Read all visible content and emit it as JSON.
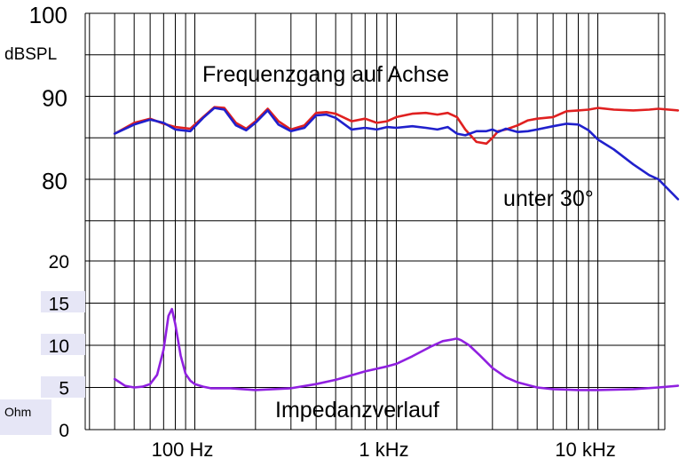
{
  "chart_data": {
    "type": "line",
    "title": "Frequenzgang auf Achse",
    "x_scale": "log",
    "xlim": [
      40,
      25000
    ],
    "x_tick_labels": [
      "100 Hz",
      "1 kHz",
      "10 kHz"
    ],
    "spl": {
      "unit": "dBSPL",
      "ylim": [
        70,
        100
      ],
      "tick_labels": [
        "100",
        "90",
        "80"
      ],
      "series": [
        {
          "name": "Frequenzgang auf Achse",
          "color": "#e02020",
          "x": [
            40,
            50,
            60,
            70,
            80,
            95,
            110,
            125,
            140,
            160,
            180,
            200,
            230,
            260,
            300,
            350,
            400,
            450,
            500,
            600,
            700,
            800,
            900,
            1000,
            1200,
            1400,
            1600,
            1800,
            2000,
            2200,
            2500,
            2800,
            3000,
            3200,
            3500,
            4000,
            4500,
            5000,
            6000,
            7000,
            8000,
            9000,
            10000,
            12000,
            15000,
            18000,
            20000,
            25000
          ],
          "values": [
            85.5,
            86.8,
            87.3,
            86.7,
            86.3,
            86.1,
            87.5,
            88.7,
            88.6,
            86.8,
            86.1,
            87.0,
            88.5,
            87.0,
            86.0,
            86.5,
            88.0,
            88.1,
            87.9,
            87.0,
            87.3,
            86.8,
            87.0,
            87.5,
            87.9,
            88.0,
            87.8,
            88.0,
            87.5,
            86.0,
            84.5,
            84.3,
            85.0,
            85.8,
            86.0,
            86.5,
            87.1,
            87.3,
            87.5,
            88.2,
            88.3,
            88.4,
            88.6,
            88.4,
            88.3,
            88.4,
            88.5,
            88.3
          ]
        },
        {
          "name": "unter 30°",
          "color": "#2020cc",
          "x": [
            40,
            50,
            60,
            70,
            80,
            95,
            110,
            125,
            140,
            160,
            180,
            200,
            230,
            260,
            300,
            350,
            400,
            450,
            500,
            600,
            700,
            800,
            900,
            1000,
            1200,
            1400,
            1600,
            1800,
            2000,
            2200,
            2500,
            2800,
            3000,
            3200,
            3500,
            4000,
            4500,
            5000,
            6000,
            7000,
            8000,
            9000,
            10000,
            12000,
            15000,
            18000,
            20000,
            25000
          ],
          "values": [
            85.5,
            86.6,
            87.2,
            86.8,
            86.0,
            85.8,
            87.4,
            88.6,
            88.4,
            86.5,
            85.9,
            86.8,
            88.3,
            86.6,
            85.8,
            86.2,
            87.7,
            87.8,
            87.4,
            86.0,
            86.2,
            86.0,
            86.3,
            86.2,
            86.4,
            86.2,
            86.0,
            86.3,
            85.5,
            85.3,
            85.8,
            85.8,
            86.0,
            85.7,
            86.1,
            85.7,
            85.8,
            86.0,
            86.4,
            86.7,
            86.6,
            85.9,
            84.8,
            83.6,
            81.8,
            80.5,
            80.0,
            77.6
          ]
        }
      ]
    },
    "impedance": {
      "unit": "Ohm",
      "ylim": [
        0,
        20
      ],
      "tick_labels": [
        "20",
        "15",
        "10",
        "5",
        "0"
      ],
      "series": [
        {
          "name": "Impedanzverlauf",
          "color": "#9020e0",
          "x": [
            40,
            45,
            50,
            55,
            60,
            65,
            70,
            74,
            77,
            80,
            85,
            90,
            95,
            100,
            110,
            120,
            150,
            200,
            300,
            400,
            500,
            700,
            900,
            1000,
            1200,
            1500,
            1700,
            1900,
            2000,
            2100,
            2300,
            2600,
            3000,
            3500,
            4000,
            5000,
            6000,
            8000,
            10000,
            15000,
            20000,
            25000
          ],
          "values": [
            6.0,
            5.2,
            5.0,
            5.1,
            5.4,
            6.5,
            9.5,
            13.5,
            14.3,
            12.5,
            8.8,
            6.6,
            5.8,
            5.4,
            5.1,
            4.9,
            4.9,
            4.7,
            4.9,
            5.4,
            5.9,
            6.9,
            7.5,
            7.8,
            8.7,
            9.9,
            10.5,
            10.7,
            10.8,
            10.6,
            10.0,
            8.8,
            7.3,
            6.2,
            5.6,
            5.0,
            4.8,
            4.7,
            4.7,
            4.8,
            5.0,
            5.2
          ]
        }
      ]
    },
    "annotations": [
      "Frequenzgang auf Achse",
      "unter 30°",
      "Impedanzverlauf"
    ],
    "grid": true
  }
}
